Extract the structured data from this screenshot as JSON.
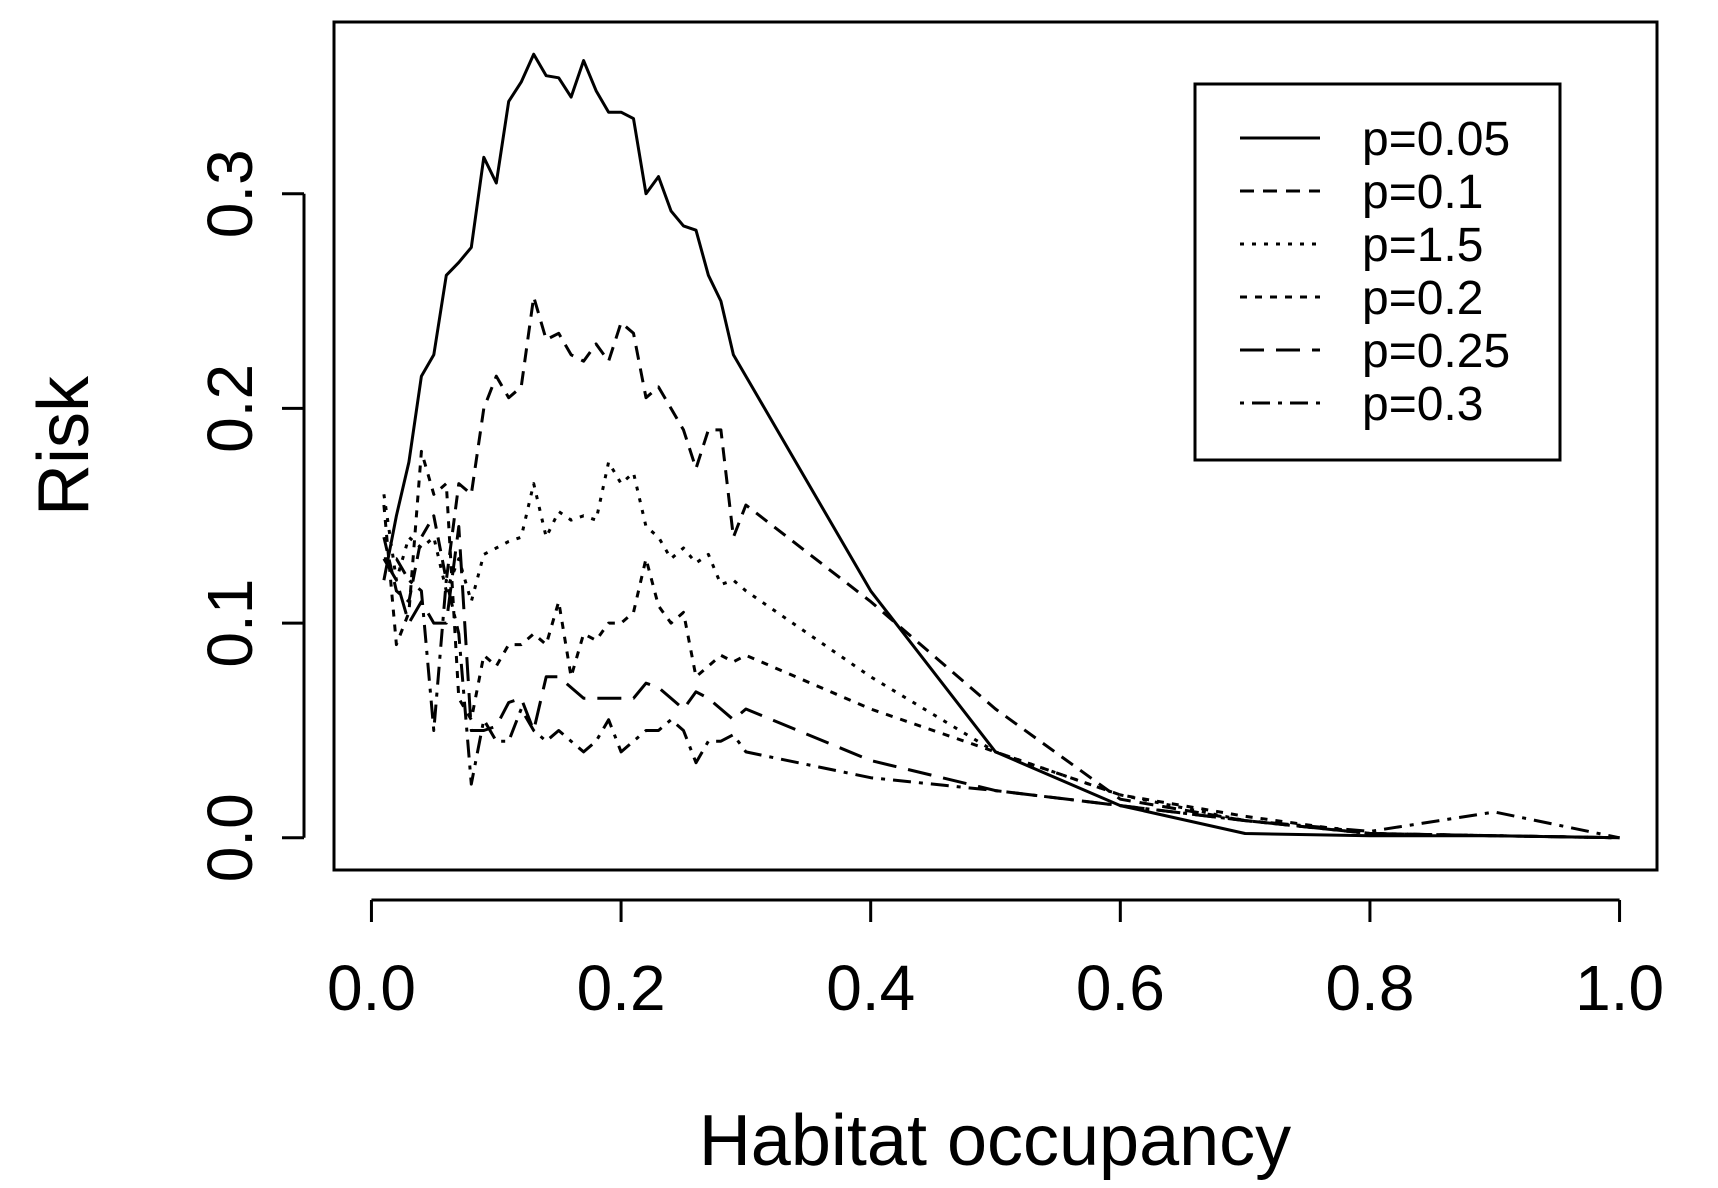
{
  "chart_data": {
    "type": "line",
    "title": "",
    "xlabel": "Habitat occupancy",
    "ylabel": "Risk",
    "xlim": [
      -0.03,
      1.03
    ],
    "ylim": [
      -0.015,
      0.38
    ],
    "xticks": [
      0.0,
      0.2,
      0.4,
      0.6,
      0.8,
      1.0
    ],
    "xtick_labels": [
      "0.0",
      "0.2",
      "0.4",
      "0.6",
      "0.8",
      "1.0"
    ],
    "yticks": [
      0.0,
      0.1,
      0.2,
      0.3
    ],
    "ytick_labels": [
      "0.0",
      "0.1",
      "0.2",
      "0.3"
    ],
    "grid": false,
    "legend_position": "top-right",
    "series": [
      {
        "name": "p=0.05",
        "dash": "solid",
        "x": [
          0.01,
          0.02,
          0.03,
          0.04,
          0.05,
          0.06,
          0.07,
          0.08,
          0.09,
          0.1,
          0.11,
          0.12,
          0.13,
          0.14,
          0.15,
          0.16,
          0.17,
          0.18,
          0.19,
          0.2,
          0.21,
          0.22,
          0.23,
          0.24,
          0.25,
          0.26,
          0.27,
          0.28,
          0.29,
          0.3,
          0.4,
          0.5,
          0.6,
          0.7,
          0.8,
          0.9,
          1.0
        ],
        "y": [
          0.12,
          0.15,
          0.175,
          0.215,
          0.225,
          0.262,
          0.268,
          0.275,
          0.317,
          0.305,
          0.343,
          0.352,
          0.365,
          0.355,
          0.354,
          0.345,
          0.362,
          0.348,
          0.338,
          0.338,
          0.335,
          0.3,
          0.308,
          0.292,
          0.285,
          0.283,
          0.262,
          0.25,
          0.225,
          0.215,
          0.115,
          0.04,
          0.015,
          0.002,
          0.001,
          0.001,
          0.0
        ]
      },
      {
        "name": "p=0.1",
        "dash": "long-dash",
        "x": [
          0.01,
          0.02,
          0.03,
          0.04,
          0.05,
          0.06,
          0.07,
          0.08,
          0.09,
          0.1,
          0.11,
          0.12,
          0.13,
          0.14,
          0.15,
          0.16,
          0.17,
          0.18,
          0.19,
          0.2,
          0.21,
          0.22,
          0.23,
          0.24,
          0.25,
          0.26,
          0.27,
          0.28,
          0.29,
          0.3,
          0.4,
          0.5,
          0.6,
          0.7,
          0.8,
          0.9,
          1.0
        ],
        "y": [
          0.14,
          0.115,
          0.11,
          0.14,
          0.15,
          0.12,
          0.165,
          0.16,
          0.2,
          0.215,
          0.205,
          0.21,
          0.252,
          0.232,
          0.235,
          0.225,
          0.222,
          0.23,
          0.222,
          0.24,
          0.235,
          0.205,
          0.21,
          0.2,
          0.19,
          0.172,
          0.19,
          0.19,
          0.14,
          0.155,
          0.11,
          0.06,
          0.018,
          0.008,
          0.002,
          0.001,
          0.0
        ]
      },
      {
        "name": "p=1.5",
        "dash": "dotted",
        "x": [
          0.01,
          0.02,
          0.03,
          0.04,
          0.05,
          0.06,
          0.07,
          0.08,
          0.09,
          0.1,
          0.11,
          0.12,
          0.13,
          0.14,
          0.15,
          0.16,
          0.17,
          0.18,
          0.19,
          0.2,
          0.21,
          0.22,
          0.23,
          0.24,
          0.25,
          0.26,
          0.27,
          0.28,
          0.29,
          0.3,
          0.4,
          0.5,
          0.6,
          0.7,
          0.8,
          0.9,
          1.0
        ],
        "y": [
          0.16,
          0.12,
          0.14,
          0.135,
          0.14,
          0.115,
          0.13,
          0.11,
          0.132,
          0.135,
          0.138,
          0.14,
          0.165,
          0.14,
          0.152,
          0.148,
          0.15,
          0.148,
          0.175,
          0.165,
          0.17,
          0.145,
          0.14,
          0.13,
          0.135,
          0.128,
          0.132,
          0.118,
          0.12,
          0.115,
          0.075,
          0.04,
          0.02,
          0.008,
          0.002,
          0.001,
          0.0
        ]
      },
      {
        "name": "p=0.2",
        "dash": "short-dash",
        "x": [
          0.01,
          0.02,
          0.03,
          0.04,
          0.05,
          0.06,
          0.07,
          0.08,
          0.09,
          0.1,
          0.11,
          0.12,
          0.13,
          0.14,
          0.15,
          0.16,
          0.17,
          0.18,
          0.19,
          0.2,
          0.21,
          0.22,
          0.23,
          0.24,
          0.25,
          0.26,
          0.27,
          0.28,
          0.29,
          0.3,
          0.4,
          0.5,
          0.6,
          0.7,
          0.8,
          0.9,
          1.0
        ],
        "y": [
          0.155,
          0.09,
          0.105,
          0.18,
          0.16,
          0.165,
          0.065,
          0.055,
          0.085,
          0.08,
          0.09,
          0.09,
          0.095,
          0.09,
          0.11,
          0.075,
          0.095,
          0.092,
          0.1,
          0.1,
          0.105,
          0.13,
          0.108,
          0.1,
          0.105,
          0.075,
          0.08,
          0.085,
          0.082,
          0.085,
          0.06,
          0.04,
          0.02,
          0.01,
          0.002,
          0.001,
          0.0
        ]
      },
      {
        "name": "p=0.25",
        "dash": "long-dash-gap",
        "x": [
          0.01,
          0.02,
          0.03,
          0.04,
          0.05,
          0.06,
          0.07,
          0.08,
          0.09,
          0.1,
          0.11,
          0.12,
          0.13,
          0.14,
          0.15,
          0.16,
          0.17,
          0.18,
          0.19,
          0.2,
          0.21,
          0.22,
          0.23,
          0.24,
          0.25,
          0.26,
          0.27,
          0.28,
          0.29,
          0.3,
          0.4,
          0.5,
          0.6,
          0.7,
          0.8,
          0.9,
          1.0
        ],
        "y": [
          0.13,
          0.12,
          0.1,
          0.11,
          0.1,
          0.1,
          0.145,
          0.05,
          0.05,
          0.052,
          0.063,
          0.065,
          0.05,
          0.075,
          0.075,
          0.07,
          0.065,
          0.065,
          0.065,
          0.065,
          0.065,
          0.072,
          0.07,
          0.065,
          0.06,
          0.068,
          0.065,
          0.06,
          0.055,
          0.06,
          0.036,
          0.022,
          0.015,
          0.008,
          0.002,
          0.001,
          0.0
        ]
      },
      {
        "name": "p=0.3",
        "dash": "dash-dot",
        "x": [
          0.01,
          0.02,
          0.03,
          0.04,
          0.05,
          0.06,
          0.07,
          0.08,
          0.09,
          0.1,
          0.11,
          0.12,
          0.13,
          0.14,
          0.15,
          0.16,
          0.17,
          0.18,
          0.19,
          0.2,
          0.21,
          0.22,
          0.23,
          0.24,
          0.25,
          0.26,
          0.27,
          0.28,
          0.29,
          0.3,
          0.4,
          0.5,
          0.6,
          0.7,
          0.8,
          0.9,
          1.0
        ],
        "y": [
          0.13,
          0.13,
          0.12,
          0.115,
          0.05,
          0.12,
          0.095,
          0.025,
          0.055,
          0.045,
          0.045,
          0.06,
          0.05,
          0.045,
          0.05,
          0.045,
          0.04,
          0.045,
          0.055,
          0.04,
          0.045,
          0.05,
          0.05,
          0.055,
          0.05,
          0.035,
          0.045,
          0.045,
          0.048,
          0.04,
          0.028,
          0.022,
          0.015,
          0.008,
          0.003,
          0.012,
          0.0
        ]
      }
    ]
  }
}
